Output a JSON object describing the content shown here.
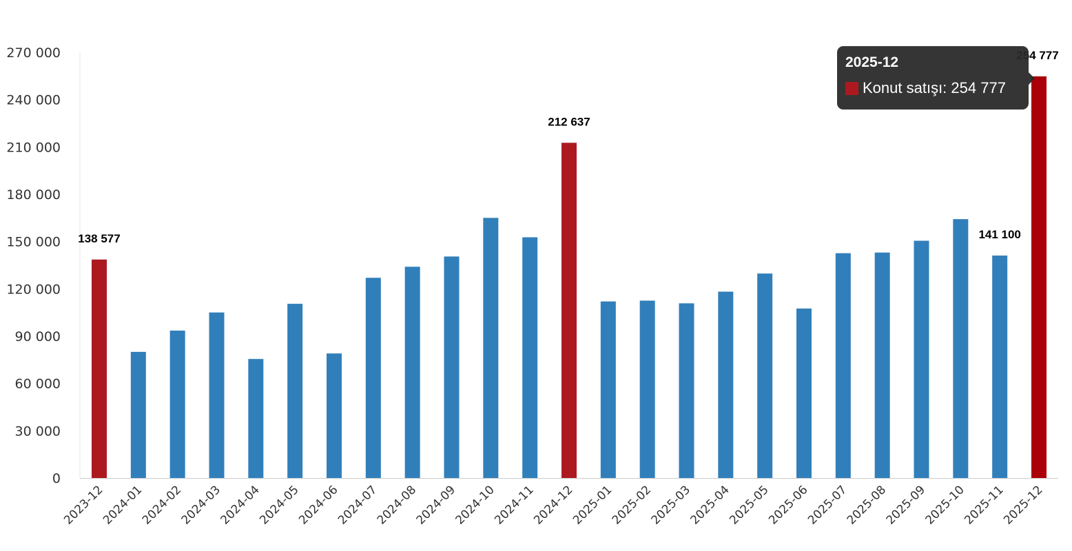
{
  "chart_data": {
    "type": "bar",
    "categories": [
      "2023-12",
      "2024-01",
      "2024-02",
      "2024-03",
      "2024-04",
      "2024-05",
      "2024-06",
      "2024-07",
      "2024-08",
      "2024-09",
      "2024-10",
      "2024-11",
      "2024-12",
      "2025-01",
      "2025-02",
      "2025-03",
      "2025-04",
      "2025-05",
      "2025-06",
      "2025-07",
      "2025-08",
      "2025-09",
      "2025-10",
      "2025-11",
      "2025-12"
    ],
    "series": [
      {
        "name": "Konut satışı",
        "values": [
          138577,
          80000,
          93500,
          105000,
          75500,
          110500,
          79000,
          127000,
          134000,
          140500,
          165000,
          152700,
          212637,
          112000,
          112500,
          110800,
          118200,
          129700,
          107500,
          142600,
          143000,
          150500,
          164200,
          141100,
          254777
        ]
      }
    ],
    "data_labels": {
      "0": "138 577",
      "12": "212 637",
      "23": "141 100",
      "24": "254 777"
    },
    "highlighted": [
      0,
      12,
      24
    ],
    "ylim": [
      0,
      270000
    ],
    "yticks": [
      0,
      30000,
      60000,
      90000,
      120000,
      150000,
      180000,
      210000,
      240000,
      270000
    ],
    "ytick_labels": [
      "0",
      "30 000",
      "60 000",
      "90 000",
      "120 000",
      "150 000",
      "180 000",
      "210 000",
      "240 000",
      "270 000"
    ],
    "grid": false,
    "colors": {
      "default": "#317fba",
      "highlight": "#ac1a20",
      "active": "#ab0007"
    },
    "title": "",
    "xlabel": "",
    "ylabel": ""
  },
  "tooltip": {
    "title": "2025-12",
    "series_label": "Konut satışı: 254 777",
    "swatch_color": "#ac1a20"
  }
}
